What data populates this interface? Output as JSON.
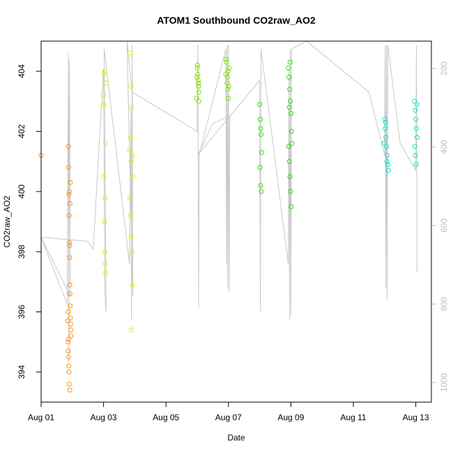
{
  "chart_data": {
    "type": "scatter",
    "title": "ATOM1 Southbound CO2raw_AO2",
    "xlabel": "Date",
    "ylabel": "CO2raw_AO2",
    "x_type": "date",
    "xlim": [
      "2018-08-01T00:00",
      "2018-08-13T12:00"
    ],
    "ylim": [
      393.0,
      405.0
    ],
    "x_ticks": [
      {
        "value": "2018-08-01",
        "label": "Aug 01"
      },
      {
        "value": "2018-08-03",
        "label": "Aug 03"
      },
      {
        "value": "2018-08-05",
        "label": "Aug 05"
      },
      {
        "value": "2018-08-07",
        "label": "Aug 07"
      },
      {
        "value": "2018-08-09",
        "label": "Aug 09"
      },
      {
        "value": "2018-08-11",
        "label": "Aug 11"
      },
      {
        "value": "2018-08-13",
        "label": "Aug 13"
      }
    ],
    "y_ticks": [
      394,
      396,
      398,
      400,
      402,
      404
    ],
    "secondary_y": {
      "position": "right",
      "color": "#bdbdbd",
      "reversed": true,
      "ylim": [
        1050,
        130
      ],
      "ticks": [
        200,
        400,
        600,
        800,
        1000
      ]
    },
    "grid": false,
    "legend": "none",
    "series": [
      {
        "color": "#f7941d",
        "marker": "open-circle",
        "points": [
          [
            "2018-08-01T00:00",
            401.2
          ],
          [
            "2018-08-01T21:00",
            401.5
          ],
          [
            "2018-08-01T21:10",
            400.8
          ],
          [
            "2018-08-01T21:20",
            399.9
          ],
          [
            "2018-08-01T21:30",
            399.2
          ],
          [
            "2018-08-01T21:40",
            398.3
          ],
          [
            "2018-08-01T21:50",
            397.8
          ],
          [
            "2018-08-01T22:00",
            396.9
          ],
          [
            "2018-08-01T22:10",
            396.6
          ],
          [
            "2018-08-01T22:20",
            396.2
          ],
          [
            "2018-08-01T22:30",
            395.8
          ],
          [
            "2018-08-01T22:40",
            395.6
          ],
          [
            "2018-08-01T22:50",
            395.4
          ],
          [
            "2018-08-01T23:00",
            395.2
          ],
          [
            "2018-08-01T20:40",
            395.0
          ],
          [
            "2018-08-01T20:50",
            394.7
          ],
          [
            "2018-08-01T21:05",
            394.5
          ],
          [
            "2018-08-01T21:15",
            394.2
          ],
          [
            "2018-08-01T21:25",
            394.0
          ],
          [
            "2018-08-01T21:35",
            393.6
          ],
          [
            "2018-08-01T22:05",
            393.4
          ],
          [
            "2018-08-01T20:30",
            395.7
          ],
          [
            "2018-08-01T21:45",
            400.0
          ],
          [
            "2018-08-01T22:15",
            399.6
          ],
          [
            "2018-08-01T22:25",
            400.3
          ],
          [
            "2018-08-01T21:55",
            398.2
          ],
          [
            "2018-08-01T20:55",
            396.0
          ],
          [
            "2018-08-01T21:12",
            395.1
          ]
        ]
      },
      {
        "color": "#e3ee00",
        "marker": "open-circle",
        "points": [
          [
            "2018-08-03T00:00",
            403.2
          ],
          [
            "2018-08-03T01:00",
            404.0
          ],
          [
            "2018-08-03T02:00",
            403.6
          ],
          [
            "2018-08-03T00:30",
            402.9
          ],
          [
            "2018-08-03T01:30",
            401.6
          ],
          [
            "2018-08-03T00:20",
            400.5
          ],
          [
            "2018-08-03T01:10",
            399.8
          ],
          [
            "2018-08-03T00:40",
            399.0
          ],
          [
            "2018-08-03T00:50",
            398.0
          ],
          [
            "2018-08-03T01:20",
            397.6
          ],
          [
            "2018-08-03T01:40",
            397.3
          ],
          [
            "2018-08-03T00:10",
            403.9
          ],
          [
            "2018-08-03T20:00",
            401.4
          ],
          [
            "2018-08-03T20:30",
            404.6
          ],
          [
            "2018-08-03T21:00",
            403.5
          ],
          [
            "2018-08-03T21:30",
            402.8
          ],
          [
            "2018-08-03T22:00",
            401.2
          ],
          [
            "2018-08-03T22:30",
            400.5
          ],
          [
            "2018-08-03T20:15",
            399.8
          ],
          [
            "2018-08-03T20:45",
            399.2
          ],
          [
            "2018-08-03T21:15",
            398.5
          ],
          [
            "2018-08-03T21:45",
            398.0
          ],
          [
            "2018-08-03T22:15",
            396.9
          ],
          [
            "2018-08-03T21:20",
            395.4
          ],
          [
            "2018-08-03T20:50",
            401.8
          ],
          [
            "2018-08-03T21:10",
            401.0
          ]
        ]
      },
      {
        "color": "#7ee000",
        "marker": "open-circle",
        "points": [
          [
            "2018-08-06T00:00",
            404.1
          ],
          [
            "2018-08-06T00:20",
            403.9
          ],
          [
            "2018-08-06T00:40",
            403.7
          ],
          [
            "2018-08-06T01:00",
            403.5
          ],
          [
            "2018-08-06T01:20",
            403.3
          ],
          [
            "2018-08-05T23:30",
            403.1
          ],
          [
            "2018-08-05T23:50",
            403.8
          ],
          [
            "2018-08-06T00:10",
            404.2
          ],
          [
            "2018-08-06T00:50",
            403.6
          ],
          [
            "2018-08-06T01:10",
            403.0
          ],
          [
            "2018-08-06T22:00",
            403.9
          ],
          [
            "2018-08-06T22:30",
            404.3
          ],
          [
            "2018-08-06T23:00",
            403.6
          ],
          [
            "2018-08-06T23:30",
            403.4
          ],
          [
            "2018-08-07T00:00",
            403.1
          ],
          [
            "2018-08-07T00:30",
            404.1
          ],
          [
            "2018-08-06T22:15",
            404.4
          ],
          [
            "2018-08-06T23:15",
            403.8
          ],
          [
            "2018-08-06T23:45",
            404.0
          ],
          [
            "2018-08-07T00:15",
            403.5
          ]
        ]
      },
      {
        "color": "#22e000",
        "marker": "open-circle",
        "points": [
          [
            "2018-08-08T00:00",
            402.9
          ],
          [
            "2018-08-08T00:30",
            402.4
          ],
          [
            "2018-08-08T01:00",
            401.9
          ],
          [
            "2018-08-08T01:30",
            401.3
          ],
          [
            "2018-08-08T00:15",
            400.8
          ],
          [
            "2018-08-08T00:45",
            400.2
          ],
          [
            "2018-08-08T01:15",
            400.0
          ],
          [
            "2018-08-08T00:50",
            402.1
          ],
          [
            "2018-08-08T22:00",
            404.1
          ],
          [
            "2018-08-08T22:30",
            403.8
          ],
          [
            "2018-08-08T23:00",
            403.4
          ],
          [
            "2018-08-08T23:30",
            403.0
          ],
          [
            "2018-08-09T00:00",
            402.6
          ],
          [
            "2018-08-09T00:30",
            402.0
          ],
          [
            "2018-08-08T22:15",
            401.5
          ],
          [
            "2018-08-08T22:45",
            401.0
          ],
          [
            "2018-08-08T23:15",
            400.5
          ],
          [
            "2018-08-08T23:45",
            400.0
          ],
          [
            "2018-08-09T00:15",
            399.5
          ],
          [
            "2018-08-08T23:20",
            404.3
          ],
          [
            "2018-08-08T22:50",
            402.8
          ],
          [
            "2018-08-09T00:45",
            401.6
          ]
        ]
      },
      {
        "color": "#00e8c8",
        "marker": "open-circle",
        "points": [
          [
            "2018-08-12T00:00",
            402.4
          ],
          [
            "2018-08-12T00:30",
            402.1
          ],
          [
            "2018-08-12T01:00",
            401.8
          ],
          [
            "2018-08-12T01:30",
            401.5
          ],
          [
            "2018-08-12T02:00",
            401.2
          ],
          [
            "2018-08-12T02:30",
            400.9
          ],
          [
            "2018-08-12T03:00",
            400.7
          ],
          [
            "2018-08-11T23:40",
            401.6
          ],
          [
            "2018-08-12T00:50",
            402.3
          ],
          [
            "2018-08-12T01:50",
            401.0
          ],
          [
            "2018-08-12T23:00",
            403.0
          ],
          [
            "2018-08-12T23:30",
            402.7
          ],
          [
            "2018-08-13T00:00",
            402.4
          ],
          [
            "2018-08-13T00:30",
            402.1
          ],
          [
            "2018-08-13T01:00",
            401.8
          ],
          [
            "2018-08-12T23:15",
            401.5
          ],
          [
            "2018-08-12T23:45",
            401.2
          ],
          [
            "2018-08-13T00:15",
            400.9
          ],
          [
            "2018-08-13T00:45",
            402.9
          ]
        ]
      }
    ],
    "secondary_series": {
      "color": "#c8c8c8",
      "type": "line",
      "points": [
        [
          "2018-08-01T00:00",
          630
        ],
        [
          "2018-08-01T20:00",
          800
        ],
        [
          "2018-08-01T21:00",
          160
        ],
        [
          "2018-08-01T21:15",
          950
        ],
        [
          "2018-08-01T21:45",
          180
        ],
        [
          "2018-08-01T22:30",
          780
        ],
        [
          "2018-08-01T00:00",
          630
        ],
        [
          "2018-08-02T12:00",
          640
        ],
        [
          "2018-08-02T16:00",
          660
        ],
        [
          "2018-08-03T00:00",
          200
        ],
        [
          "2018-08-03T01:00",
          770
        ],
        [
          "2018-08-03T02:00",
          820
        ],
        [
          "2018-08-03T00:30",
          150
        ],
        [
          "2018-08-03T20:00",
          700
        ],
        [
          "2018-08-03T21:00",
          300
        ],
        [
          "2018-08-03T21:30",
          840
        ],
        [
          "2018-08-03T22:00",
          140
        ],
        [
          "2018-08-03T22:30",
          780
        ],
        [
          "2018-08-03T18:00",
          130
        ],
        [
          "2018-08-03T22:00",
          260
        ],
        [
          "2018-08-06T00:00",
          360
        ],
        [
          "2018-08-06T00:30",
          140
        ],
        [
          "2018-08-06T01:00",
          810
        ],
        [
          "2018-08-06T01:30",
          420
        ],
        [
          "2018-08-06T22:00",
          150
        ],
        [
          "2018-08-06T22:30",
          700
        ],
        [
          "2018-08-06T23:00",
          140
        ],
        [
          "2018-08-06T23:30",
          760
        ],
        [
          "2018-08-07T00:00",
          140
        ],
        [
          "2018-08-07T00:30",
          770
        ],
        [
          "2018-08-07T01:00",
          320
        ],
        [
          "2018-08-06T12:00",
          340
        ],
        [
          "2018-08-06T00:30",
          420
        ],
        [
          "2018-08-08T00:00",
          230
        ],
        [
          "2018-08-08T00:30",
          820
        ],
        [
          "2018-08-08T01:00",
          150
        ],
        [
          "2018-08-08T22:00",
          700
        ],
        [
          "2018-08-08T22:30",
          200
        ],
        [
          "2018-08-08T23:00",
          840
        ],
        [
          "2018-08-08T23:30",
          150
        ],
        [
          "2018-08-09T00:00",
          830
        ],
        [
          "2018-08-09T00:30",
          150
        ],
        [
          "2018-08-09T12:00",
          130
        ],
        [
          "2018-08-11T12:00",
          260
        ],
        [
          "2018-08-12T00:00",
          420
        ],
        [
          "2018-08-12T00:30",
          140
        ],
        [
          "2018-08-12T01:00",
          760
        ],
        [
          "2018-08-12T01:30",
          140
        ],
        [
          "2018-08-12T02:00",
          790
        ],
        [
          "2018-08-12T02:30",
          140
        ],
        [
          "2018-08-12T12:00",
          390
        ],
        [
          "2018-08-13T00:00",
          460
        ],
        [
          "2018-08-13T00:30",
          140
        ],
        [
          "2018-08-13T01:00",
          720
        ]
      ]
    }
  }
}
